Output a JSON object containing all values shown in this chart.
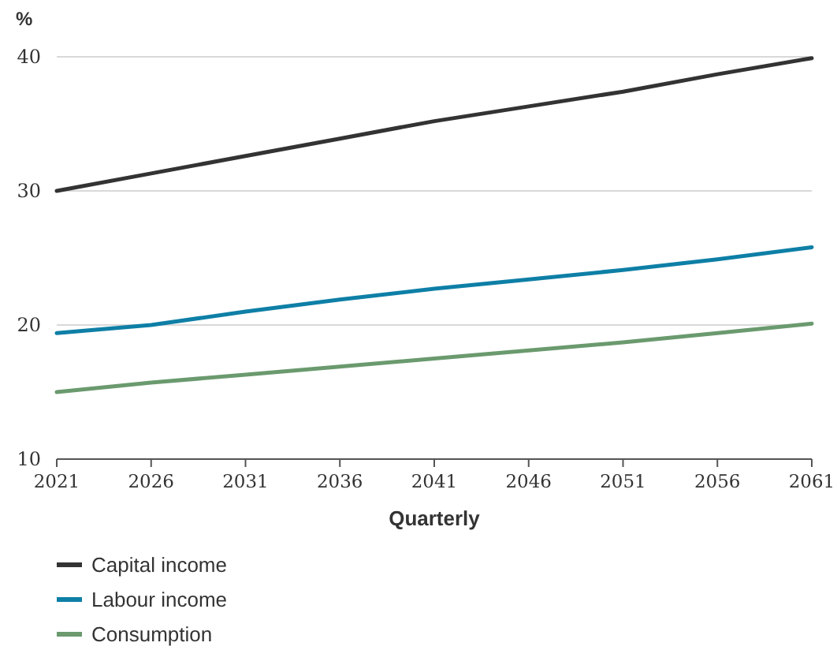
{
  "chart_data": {
    "type": "line",
    "ylabel": "%",
    "xlabel": "Quarterly",
    "x": [
      2021,
      2026,
      2031,
      2036,
      2041,
      2046,
      2051,
      2056,
      2061
    ],
    "xlim": [
      2021,
      2061
    ],
    "xticks": [
      2021,
      2026,
      2031,
      2036,
      2041,
      2046,
      2051,
      2056,
      2061
    ],
    "ylim": [
      10,
      40
    ],
    "yticks": [
      10,
      20,
      30,
      40
    ],
    "grid": "y",
    "legend": "bottom",
    "marker": "none",
    "line_style": "solid",
    "series": [
      {
        "name": "Capital income",
        "color": "#333333",
        "values": [
          30.0,
          31.3,
          32.6,
          33.9,
          35.2,
          36.3,
          37.4,
          38.7,
          39.9
        ]
      },
      {
        "name": "Labour income",
        "color": "#0e7fa6",
        "values": [
          19.4,
          20.0,
          21.0,
          21.9,
          22.7,
          23.4,
          24.1,
          24.9,
          25.8
        ]
      },
      {
        "name": "Consumption",
        "color": "#6a9a6e",
        "values": [
          15.0,
          15.7,
          16.3,
          16.9,
          17.5,
          18.1,
          18.7,
          19.4,
          20.1
        ]
      }
    ]
  }
}
